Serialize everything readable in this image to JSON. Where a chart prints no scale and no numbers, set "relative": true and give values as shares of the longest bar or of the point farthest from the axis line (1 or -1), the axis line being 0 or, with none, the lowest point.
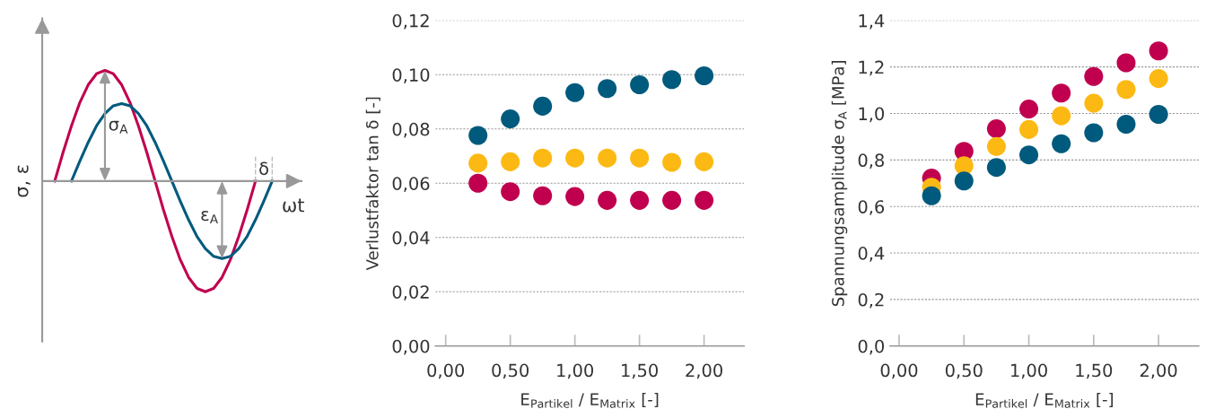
{
  "chart_data": [
    {
      "type": "line",
      "relative": true,
      "xlabel": "ωt",
      "ylabel": "σ, ε",
      "marker": "none",
      "line_style": "solid",
      "categories": [
        null,
        null,
        null,
        null,
        null,
        null,
        null,
        null,
        null,
        null,
        null,
        null,
        null,
        null,
        null,
        null,
        null,
        null,
        null,
        null,
        null,
        null,
        null,
        null,
        null,
        null,
        null
      ],
      "series": [
        {
          "color": "#c0004f",
          "values": [
            0,
            0.26,
            0.5,
            0.71,
            0.87,
            0.97,
            1,
            0.97,
            0.87,
            0.71,
            0.5,
            0.26,
            0,
            -0.26,
            -0.5,
            -0.71,
            -0.87,
            -0.97,
            -1,
            -0.97,
            -0.87,
            -0.71,
            -0.5,
            -0.26,
            0,
            null,
            null
          ]
        },
        {
          "color": "#005a7d",
          "values": [
            null,
            null,
            0,
            0.18,
            0.35,
            0.5,
            0.61,
            0.68,
            0.7,
            0.68,
            0.61,
            0.5,
            0.35,
            0.18,
            0,
            -0.18,
            -0.35,
            -0.5,
            -0.61,
            -0.68,
            -0.7,
            -0.68,
            -0.61,
            -0.5,
            -0.35,
            -0.18,
            0
          ]
        }
      ],
      "annotations": [
        "σ$_{A}$",
        "ε$_{A}$",
        "δ"
      ]
    },
    {
      "type": "scatter",
      "marker": "circle",
      "grid": "y",
      "xlabel": "E$_{Partikel}$ / E$_{Matrix}$ [-]",
      "ylabel": "Verlustfaktor tan δ [-]",
      "x": [
        0.25,
        0.5,
        0.75,
        1.0,
        1.25,
        1.5,
        1.75,
        2.0
      ],
      "xlim": [
        -0.08,
        2.31
      ],
      "ylim": [
        0,
        0.12
      ],
      "xticks": [
        {
          "value": 0,
          "label": "0,00"
        },
        {
          "value": 0.5,
          "label": "0,50"
        },
        {
          "value": 1,
          "label": "1,00"
        },
        {
          "value": 1.5,
          "label": "1,50"
        },
        {
          "value": 2,
          "label": "2,00"
        }
      ],
      "yticks": [
        {
          "value": 0,
          "label": "0,00"
        },
        {
          "value": 0.02,
          "label": "0,02"
        },
        {
          "value": 0.04,
          "label": "0,04"
        },
        {
          "value": 0.06,
          "label": "0,06"
        },
        {
          "value": 0.08,
          "label": "0,08"
        },
        {
          "value": 0.1,
          "label": "0,10"
        },
        {
          "value": 0.12,
          "label": "0,12"
        }
      ],
      "series": [
        {
          "color": "#005a7d",
          "values": [
            0.0776,
            0.0837,
            0.0884,
            0.0934,
            0.0949,
            0.0963,
            0.0982,
            0.0996
          ]
        },
        {
          "color": "#fdb913",
          "values": [
            0.0674,
            0.0679,
            0.0693,
            0.0693,
            0.0693,
            0.0693,
            0.0677,
            0.0679
          ]
        },
        {
          "color": "#c0004f",
          "values": [
            0.06,
            0.0569,
            0.0554,
            0.0551,
            0.0537,
            0.0537,
            0.0537,
            0.0537
          ]
        }
      ]
    },
    {
      "type": "scatter",
      "marker": "circle",
      "grid": "y",
      "xlabel": "E$_{Partikel}$ / E$_{Matrix}$ [-]",
      "ylabel": "Spannungsamplitude σ$_{A}$ [MPa]",
      "x": [
        0.25,
        0.5,
        0.75,
        1.0,
        1.25,
        1.5,
        1.75,
        2.0
      ],
      "xlim": [
        -0.07,
        2.31
      ],
      "ylim": [
        0,
        1.4
      ],
      "xticks": [
        {
          "value": 0,
          "label": "0,00"
        },
        {
          "value": 0.5,
          "label": "0,50"
        },
        {
          "value": 1,
          "label": "1,00"
        },
        {
          "value": 1.5,
          "label": "1,50"
        },
        {
          "value": 2,
          "label": "2,00"
        }
      ],
      "yticks": [
        {
          "value": 0,
          "label": "0,0"
        },
        {
          "value": 0.2,
          "label": "0,2"
        },
        {
          "value": 0.4,
          "label": "0,4"
        },
        {
          "value": 0.6,
          "label": "0,6"
        },
        {
          "value": 0.8,
          "label": "0,8"
        },
        {
          "value": 1.0,
          "label": "1,0"
        },
        {
          "value": 1.2,
          "label": "1,2"
        },
        {
          "value": 1.4,
          "label": "1,4"
        }
      ],
      "series": [
        {
          "color": "#c0004f",
          "values": [
            0.722,
            0.837,
            0.934,
            1.019,
            1.088,
            1.159,
            1.218,
            1.269
          ]
        },
        {
          "color": "#fdb913",
          "values": [
            0.683,
            0.775,
            0.858,
            0.931,
            0.99,
            1.044,
            1.103,
            1.15
          ]
        },
        {
          "color": "#005a7d",
          "values": [
            0.646,
            0.71,
            0.768,
            0.822,
            0.87,
            0.917,
            0.954,
            0.996
          ]
        }
      ]
    }
  ]
}
